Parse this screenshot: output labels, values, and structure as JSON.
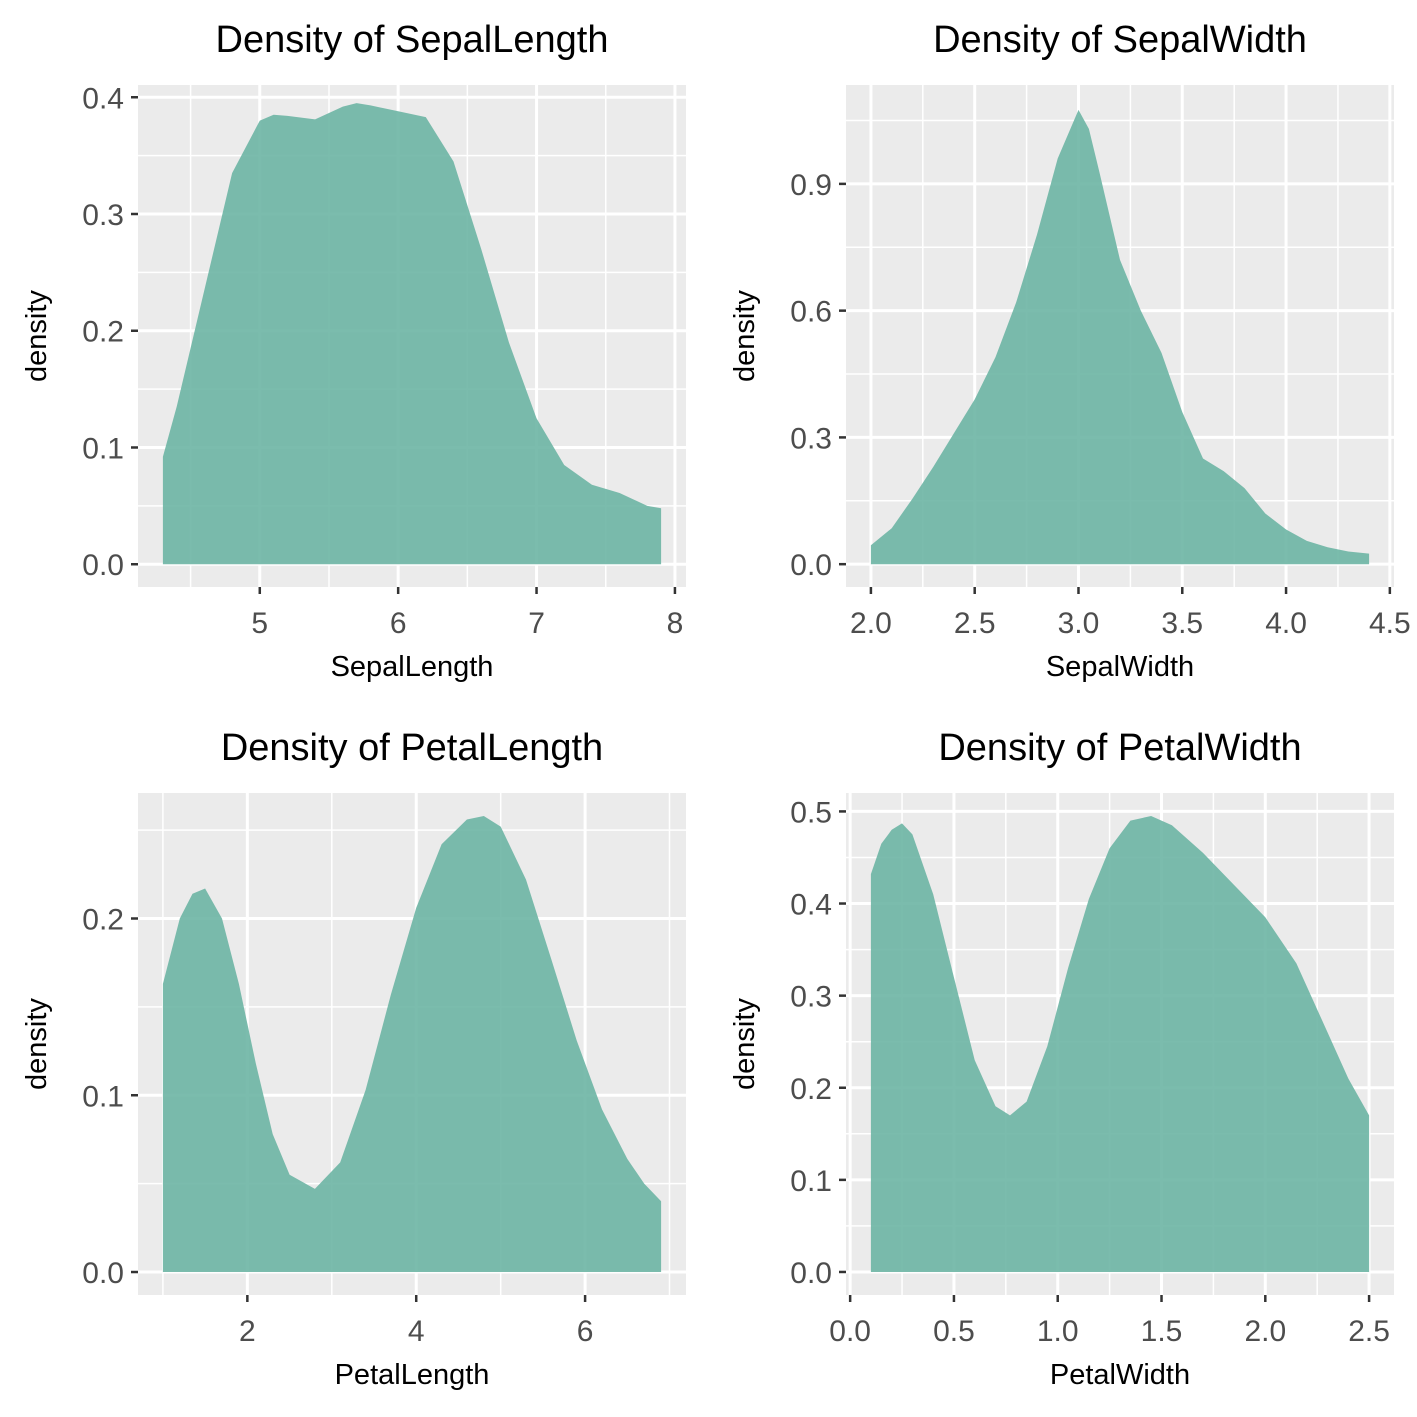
{
  "colors": {
    "panel_background": "#EBEBEB",
    "grid": "#FFFFFF",
    "fill": "#69B3A2",
    "tick": "#333333",
    "tick_label": "#4D4D4D"
  },
  "chart_data": [
    {
      "type": "area",
      "title": "Density of SepalLength",
      "xlabel": "SepalLength",
      "ylabel": "density",
      "xlim": [
        4.12,
        8.08
      ],
      "ylim": [
        -0.0195,
        0.4105
      ],
      "x_ticks": [
        5,
        6,
        7,
        8
      ],
      "x_tick_labels": [
        "5",
        "6",
        "7",
        "8"
      ],
      "y_ticks": [
        0.0,
        0.1,
        0.2,
        0.3,
        0.4
      ],
      "y_tick_labels": [
        "0.0",
        "0.1",
        "0.2",
        "0.3",
        "0.4"
      ],
      "x": [
        4.3,
        4.4,
        4.6,
        4.8,
        5.0,
        5.1,
        5.2,
        5.4,
        5.6,
        5.7,
        5.8,
        6.0,
        6.2,
        6.4,
        6.6,
        6.8,
        7.0,
        7.2,
        7.4,
        7.6,
        7.8,
        7.9
      ],
      "y": [
        0.092,
        0.135,
        0.235,
        0.335,
        0.38,
        0.385,
        0.384,
        0.381,
        0.392,
        0.395,
        0.393,
        0.388,
        0.383,
        0.345,
        0.27,
        0.19,
        0.125,
        0.085,
        0.068,
        0.061,
        0.05,
        0.048
      ]
    },
    {
      "type": "area",
      "title": "Density of SepalWidth",
      "xlabel": "SepalWidth",
      "ylabel": "density",
      "xlim": [
        1.88,
        4.52
      ],
      "ylim": [
        -0.054,
        1.134
      ],
      "x_ticks": [
        2.0,
        2.5,
        3.0,
        3.5,
        4.0,
        4.5
      ],
      "x_tick_labels": [
        "2.0",
        "2.5",
        "3.0",
        "3.5",
        "4.0",
        "4.5"
      ],
      "y_ticks": [
        0.0,
        0.3,
        0.6,
        0.9
      ],
      "y_tick_labels": [
        "0.0",
        "0.3",
        "0.6",
        "0.9"
      ],
      "x": [
        2.0,
        2.1,
        2.2,
        2.3,
        2.4,
        2.5,
        2.6,
        2.7,
        2.8,
        2.9,
        3.0,
        3.05,
        3.1,
        3.2,
        3.3,
        3.4,
        3.5,
        3.6,
        3.7,
        3.8,
        3.9,
        4.0,
        4.1,
        4.2,
        4.3,
        4.4
      ],
      "y": [
        0.045,
        0.085,
        0.155,
        0.23,
        0.31,
        0.39,
        0.49,
        0.62,
        0.78,
        0.96,
        1.075,
        1.03,
        0.93,
        0.72,
        0.6,
        0.5,
        0.36,
        0.25,
        0.22,
        0.18,
        0.12,
        0.082,
        0.055,
        0.04,
        0.03,
        0.025
      ]
    },
    {
      "type": "area",
      "title": "Density of PetalLength",
      "xlabel": "PetalLength",
      "ylabel": "density",
      "xlim": [
        0.705,
        7.195
      ],
      "ylim": [
        -0.013,
        0.271
      ],
      "x_ticks": [
        2,
        4,
        6
      ],
      "x_tick_labels": [
        "2",
        "4",
        "6"
      ],
      "y_ticks": [
        0.0,
        0.1,
        0.2
      ],
      "y_tick_labels": [
        "0.0",
        "0.1",
        "0.2"
      ],
      "x": [
        1.0,
        1.2,
        1.35,
        1.5,
        1.7,
        1.9,
        2.1,
        2.3,
        2.5,
        2.8,
        3.1,
        3.4,
        3.7,
        4.0,
        4.3,
        4.6,
        4.8,
        5.0,
        5.3,
        5.6,
        5.9,
        6.2,
        6.5,
        6.7,
        6.9
      ],
      "y": [
        0.163,
        0.2,
        0.214,
        0.217,
        0.2,
        0.163,
        0.118,
        0.078,
        0.055,
        0.047,
        0.062,
        0.103,
        0.157,
        0.206,
        0.242,
        0.256,
        0.258,
        0.252,
        0.222,
        0.177,
        0.131,
        0.092,
        0.064,
        0.05,
        0.04
      ]
    },
    {
      "type": "area",
      "title": "Density of PetalWidth",
      "xlabel": "PetalWidth",
      "ylabel": "density",
      "xlim": [
        -0.02,
        2.62
      ],
      "ylim": [
        -0.025,
        0.52
      ],
      "x_ticks": [
        0.0,
        0.5,
        1.0,
        1.5,
        2.0,
        2.5
      ],
      "x_tick_labels": [
        "0.0",
        "0.5",
        "1.0",
        "1.5",
        "2.0",
        "2.5"
      ],
      "y_ticks": [
        0.0,
        0.1,
        0.2,
        0.3,
        0.4,
        0.5
      ],
      "y_tick_labels": [
        "0.0",
        "0.1",
        "0.2",
        "0.3",
        "0.4",
        "0.5"
      ],
      "x": [
        0.1,
        0.15,
        0.2,
        0.25,
        0.3,
        0.4,
        0.5,
        0.6,
        0.7,
        0.77,
        0.85,
        0.95,
        1.05,
        1.15,
        1.25,
        1.35,
        1.45,
        1.55,
        1.7,
        1.85,
        2.0,
        2.15,
        2.3,
        2.4,
        2.5
      ],
      "y": [
        0.432,
        0.465,
        0.48,
        0.487,
        0.475,
        0.41,
        0.32,
        0.23,
        0.18,
        0.17,
        0.185,
        0.245,
        0.33,
        0.405,
        0.46,
        0.49,
        0.495,
        0.485,
        0.455,
        0.42,
        0.385,
        0.335,
        0.26,
        0.21,
        0.17
      ]
    }
  ]
}
